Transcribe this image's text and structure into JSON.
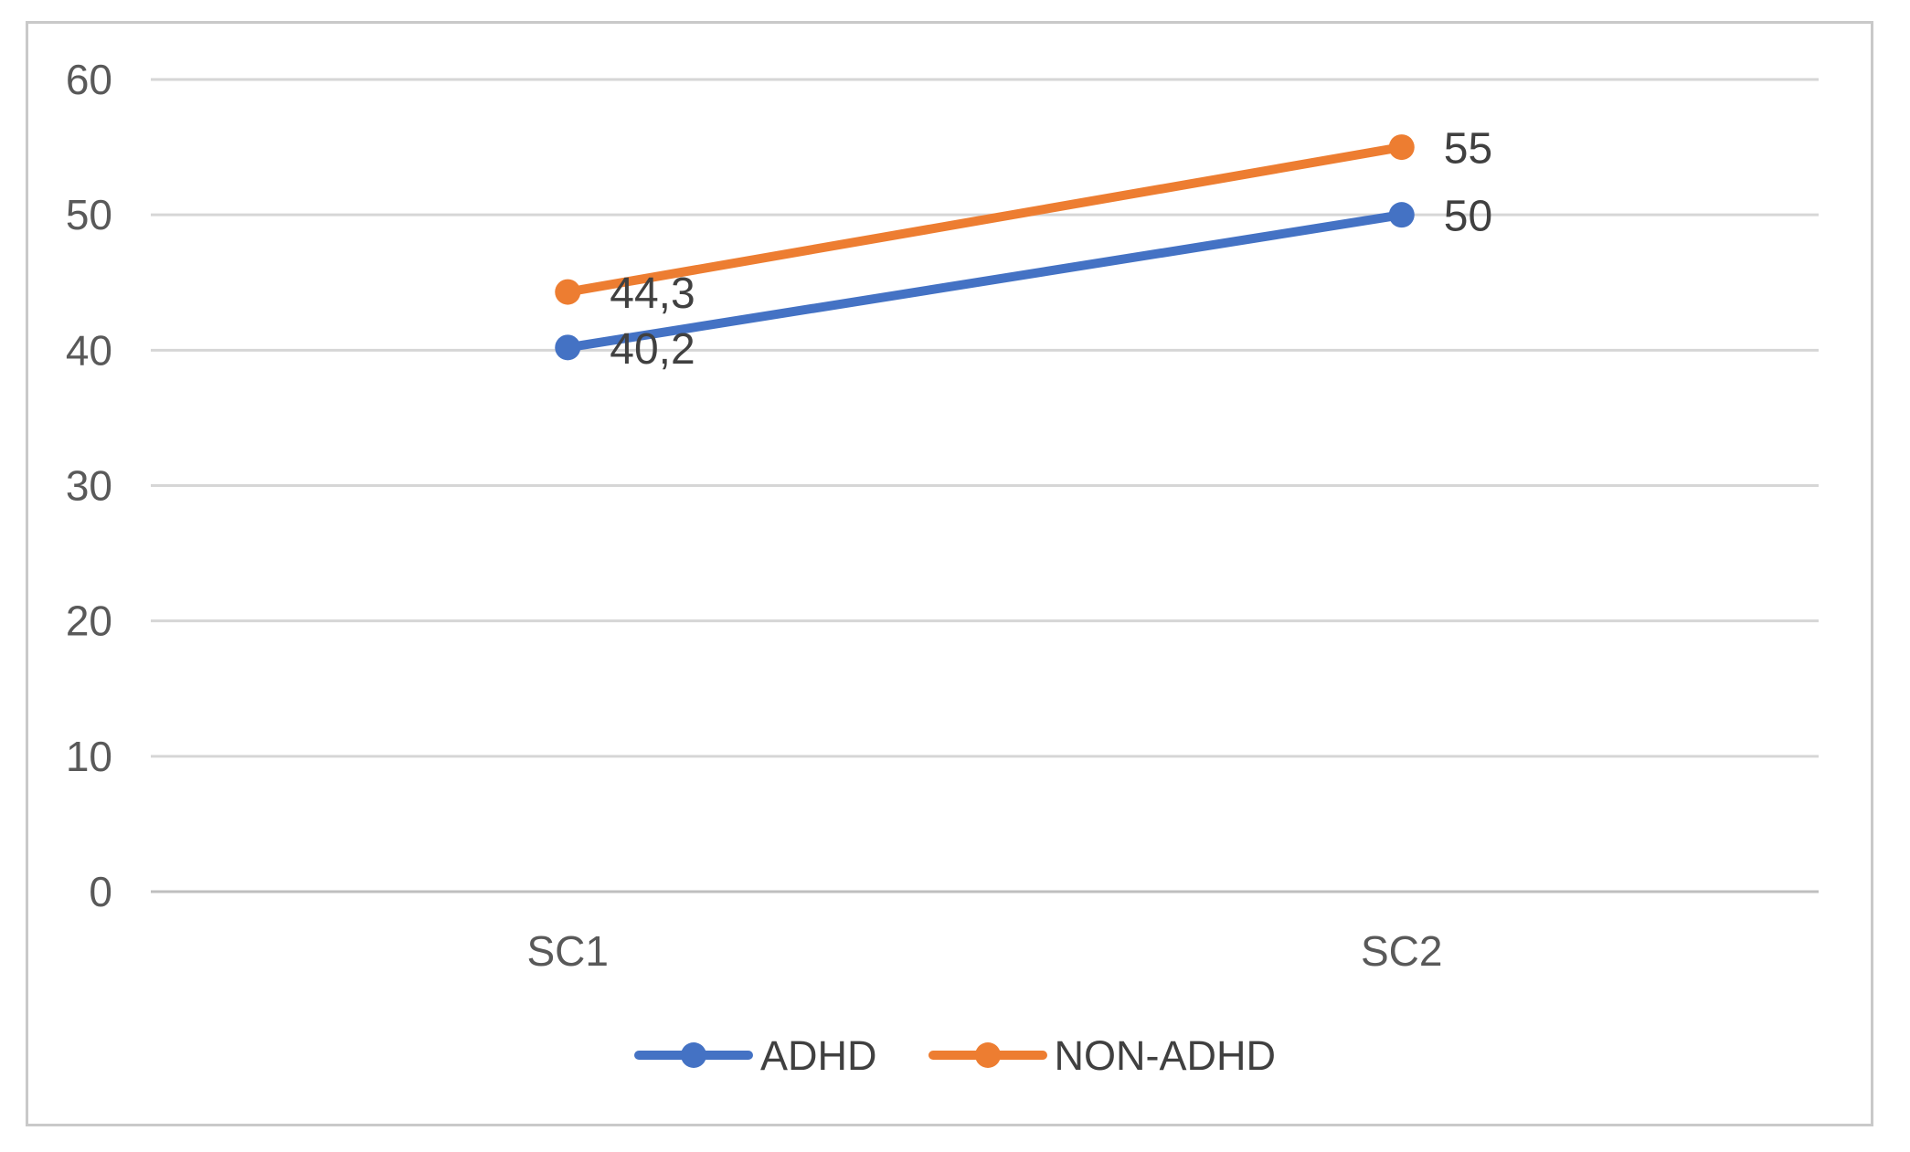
{
  "chart_data": {
    "type": "line",
    "title": "",
    "xlabel": "",
    "ylabel": "",
    "categories": [
      "SC1",
      "SC2"
    ],
    "series": [
      {
        "name": "ADHD",
        "color": "#4472C4",
        "values": [
          40.2,
          50
        ],
        "labels": [
          "40,2",
          "50"
        ]
      },
      {
        "name": "NON-ADHD",
        "color": "#ED7D31",
        "values": [
          44.3,
          55
        ],
        "labels": [
          "44,3",
          "55"
        ]
      }
    ],
    "ylim": [
      0,
      60
    ],
    "yticks": [
      0,
      10,
      20,
      30,
      40,
      50,
      60
    ],
    "grid": "horizontal",
    "legend_position": "bottom",
    "marker": "circle",
    "data_labels_position": "right-of-point"
  },
  "colors": {
    "background": "#FFFFFF",
    "border": "#C9C9C9",
    "gridline": "#D6D6D6",
    "axis_line": "#BFBFBF",
    "axis_text": "#595959",
    "data_label_text": "#404040",
    "legend_text": "#404040"
  }
}
